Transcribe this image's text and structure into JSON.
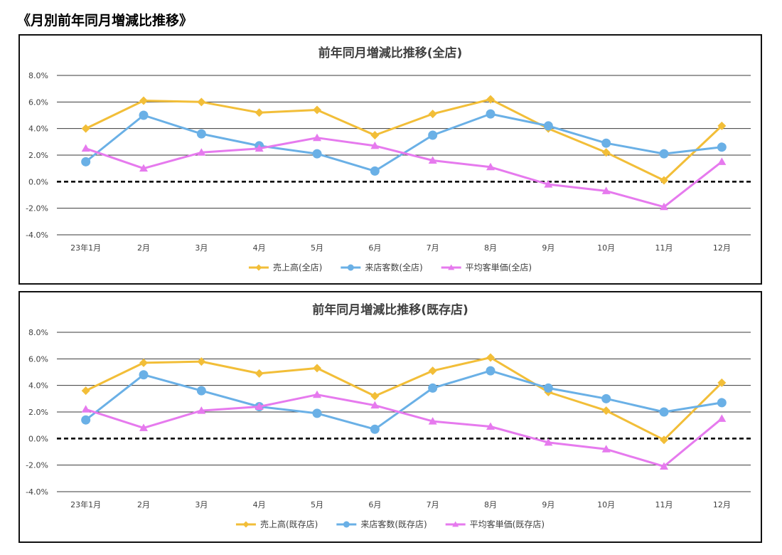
{
  "page": {
    "heading": "《月別前年同月増減比推移》"
  },
  "colors": {
    "sales": "#F2BE38",
    "customers": "#6AB0E6",
    "unit_price": "#E67AEE",
    "grid": "#3a3a3a",
    "zero_line": "#000000"
  },
  "chart_data": [
    {
      "type": "line",
      "title": "前年同月増減比推移(全店)",
      "categories": [
        "23年1月",
        "2月",
        "3月",
        "4月",
        "5月",
        "6月",
        "7月",
        "8月",
        "9月",
        "10月",
        "11月",
        "12月"
      ],
      "y_ticks": [
        "8.0%",
        "6.0%",
        "4.0%",
        "2.0%",
        "0.0%",
        "-2.0%",
        "-4.0%"
      ],
      "ylim": [
        -4,
        8
      ],
      "grid": true,
      "legend_position": "bottom",
      "series": [
        {
          "name": "売上高(全店)",
          "marker": "diamond",
          "color_key": "sales",
          "values": [
            4.0,
            6.1,
            6.0,
            5.2,
            5.4,
            3.5,
            5.1,
            6.2,
            4.0,
            2.2,
            0.1,
            4.2
          ]
        },
        {
          "name": "来店客数(全店)",
          "marker": "circle",
          "color_key": "customers",
          "values": [
            1.5,
            5.0,
            3.6,
            2.7,
            2.1,
            0.8,
            3.5,
            5.1,
            4.2,
            2.9,
            2.1,
            2.6
          ]
        },
        {
          "name": "平均客単価(全店)",
          "marker": "triangle",
          "color_key": "unit_price",
          "values": [
            2.5,
            1.0,
            2.2,
            2.5,
            3.3,
            2.7,
            1.6,
            1.1,
            -0.2,
            -0.7,
            -1.9,
            1.5
          ]
        }
      ]
    },
    {
      "type": "line",
      "title": "前年同月増減比推移(既存店)",
      "categories": [
        "23年1月",
        "2月",
        "3月",
        "4月",
        "5月",
        "6月",
        "7月",
        "8月",
        "9月",
        "10月",
        "11月",
        "12月"
      ],
      "y_ticks": [
        "8.0%",
        "6.0%",
        "4.0%",
        "2.0%",
        "0.0%",
        "-2.0%",
        "-4.0%"
      ],
      "ylim": [
        -4,
        8
      ],
      "grid": true,
      "legend_position": "bottom",
      "series": [
        {
          "name": "売上高(既存店)",
          "marker": "diamond",
          "color_key": "sales",
          "values": [
            3.6,
            5.7,
            5.8,
            4.9,
            5.3,
            3.2,
            5.1,
            6.1,
            3.5,
            2.1,
            -0.1,
            4.2
          ]
        },
        {
          "name": "来店客数(既存店)",
          "marker": "circle",
          "color_key": "customers",
          "values": [
            1.4,
            4.8,
            3.6,
            2.4,
            1.9,
            0.7,
            3.8,
            5.1,
            3.8,
            3.0,
            2.0,
            2.7
          ]
        },
        {
          "name": "平均客単価(既存店)",
          "marker": "triangle",
          "color_key": "unit_price",
          "values": [
            2.2,
            0.8,
            2.1,
            2.4,
            3.3,
            2.5,
            1.3,
            0.9,
            -0.3,
            -0.8,
            -2.1,
            1.5
          ]
        }
      ]
    }
  ]
}
